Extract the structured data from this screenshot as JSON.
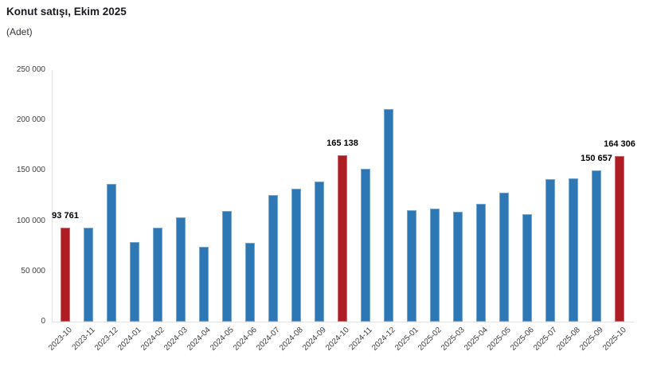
{
  "title": "Konut satışı, Ekim 2025",
  "subtitle": "(Adet)",
  "colors": {
    "bar_default": "#2E77B5",
    "bar_highlight": "#AE1C24",
    "axis_line": "#E2E2E2",
    "tick_text": "#404040",
    "title_text": "#1A1A24",
    "value_label_text": "#000000"
  },
  "chart_data": {
    "type": "bar",
    "title": "Konut satışı, Ekim 2025",
    "xlabel": "",
    "ylabel": "Adet",
    "ylim": [
      0,
      250000
    ],
    "grid": false,
    "legend": "none",
    "yticks": [
      0,
      50000,
      100000,
      150000,
      200000,
      250000
    ],
    "ytick_labels": [
      "0",
      "50 000",
      "100 000",
      "150 000",
      "200 000",
      "250 000"
    ],
    "categories": [
      "2023-10",
      "2023-11",
      "2023-12",
      "2024-01",
      "2024-02",
      "2024-03",
      "2024-04",
      "2024-05",
      "2024-06",
      "2024-07",
      "2024-08",
      "2024-09",
      "2024-10",
      "2024-11",
      "2024-12",
      "2025-01",
      "2025-02",
      "2025-03",
      "2025-04",
      "2025-05",
      "2025-06",
      "2025-07",
      "2025-08",
      "2025-09",
      "2025-10"
    ],
    "values": [
      93761,
      93500,
      137000,
      79000,
      93000,
      104000,
      74500,
      110000,
      78000,
      126000,
      132500,
      139500,
      165138,
      152000,
      211500,
      111000,
      112000,
      109500,
      117000,
      128500,
      106500,
      142000,
      142500,
      150657,
      164306
    ],
    "highlight_indices": [
      0,
      12,
      24
    ],
    "value_labels": [
      {
        "index": 0,
        "text": "93 761"
      },
      {
        "index": 12,
        "text": "165 138"
      },
      {
        "index": 23,
        "text": "150 657"
      },
      {
        "index": 24,
        "text": "164 306"
      }
    ]
  }
}
